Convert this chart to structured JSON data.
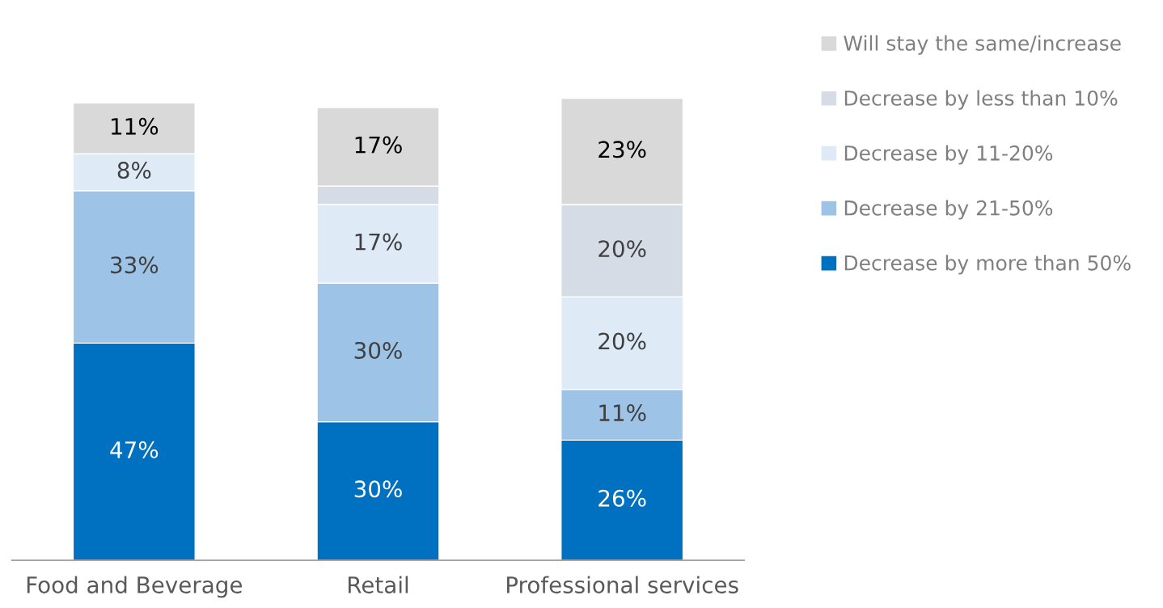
{
  "chart_data": {
    "type": "bar",
    "stacked": true,
    "categories": [
      "Food and Beverage",
      "Retail",
      "Professional services"
    ],
    "series": [
      {
        "name": "Decrease by more than 50%",
        "color": "#0070c0",
        "values": [
          47,
          30,
          26
        ],
        "value_labels": [
          "47%",
          "30%",
          "26%"
        ]
      },
      {
        "name": "Decrease by 21-50%",
        "color": "#9dc3e6",
        "values": [
          33,
          30,
          11
        ],
        "value_labels": [
          "33%",
          "30%",
          "11%"
        ]
      },
      {
        "name": "Decrease by 11-20%",
        "color": "#deebf7",
        "values": [
          8,
          17,
          20
        ],
        "value_labels": [
          "8%",
          "17%",
          "20%"
        ]
      },
      {
        "name": "Decrease by less than 10%",
        "color": "#d6dce5",
        "values": [
          null,
          4,
          20
        ],
        "value_labels": [
          null,
          null,
          "20%"
        ]
      },
      {
        "name": "Will stay the same/increase",
        "color": "#d9d9d9",
        "values": [
          11,
          17,
          23
        ],
        "value_labels": [
          "11%",
          "17%",
          "23%"
        ]
      }
    ],
    "legend": "right",
    "grid": false,
    "tick_labels": "x"
  }
}
